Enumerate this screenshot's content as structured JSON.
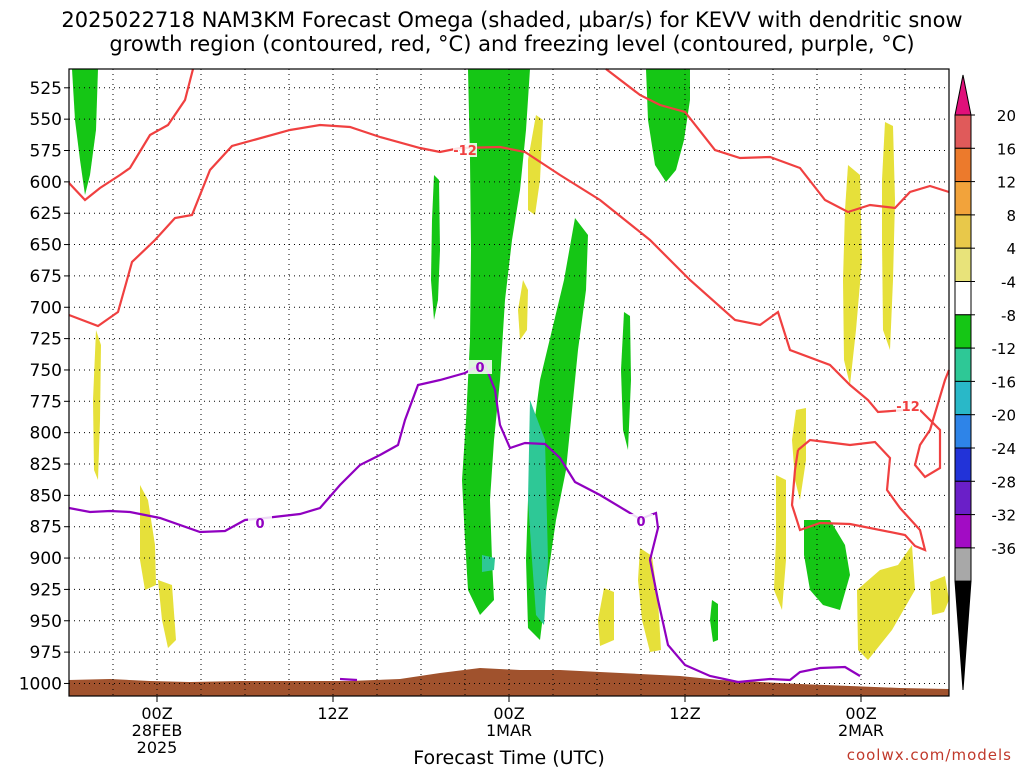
{
  "chart_data": {
    "type": "heatmap",
    "title_line1": "2025022718 NAM3KM Forecast Omega (shaded, µbar/s) for KEVV with dendritic snow",
    "title_line2": "growth region (contoured, red, °C) and freezing level (contoured, purple, °C)",
    "xlabel": "Forecast Time (UTC)",
    "y_ticks": [
      525,
      550,
      575,
      600,
      625,
      650,
      675,
      700,
      725,
      750,
      775,
      800,
      825,
      850,
      875,
      900,
      925,
      950,
      975,
      1000
    ],
    "y_range_hpa": [
      510,
      1010
    ],
    "x_range_hours": [
      -6,
      54
    ],
    "x_ticks": [
      {
        "hour": 0,
        "lines": [
          "00Z",
          "28FEB",
          "2025"
        ]
      },
      {
        "hour": 12,
        "lines": [
          "12Z"
        ]
      },
      {
        "hour": 24,
        "lines": [
          "00Z",
          "1MAR"
        ]
      },
      {
        "hour": 36,
        "lines": [
          "12Z"
        ]
      },
      {
        "hour": 48,
        "lines": [
          "00Z",
          "2MAR"
        ]
      }
    ],
    "colorbar": {
      "labels": [
        "20",
        "16",
        "12",
        "8",
        "4",
        "-4",
        "-8",
        "-12",
        "-16",
        "-20",
        "-24",
        "-28",
        "-32",
        "-36"
      ],
      "colors": [
        "#e05a5a",
        "#ec7a2c",
        "#f2a33b",
        "#e8c84a",
        "#e8e37a",
        "#ffffff",
        "#15c615",
        "#2ec896",
        "#29b8c8",
        "#2e84e8",
        "#2233d8",
        "#6a1fc8",
        "#a20cc4",
        "#a8a8a8"
      ],
      "top_arrow_color": "#e0107a",
      "bottom_arrow_color": "#000000"
    },
    "contour_labels": [
      "-12",
      "-12",
      "0",
      "0",
      "0"
    ],
    "colors": {
      "dgz_contour": "#f04040",
      "freezing_level": "#9000c0",
      "ground": "#a0522d",
      "rising": "#15c615",
      "sinking": "#e6e03a",
      "strong_rising": "#2ec896"
    },
    "grid": true
  },
  "credit": "coolwx.com/models"
}
